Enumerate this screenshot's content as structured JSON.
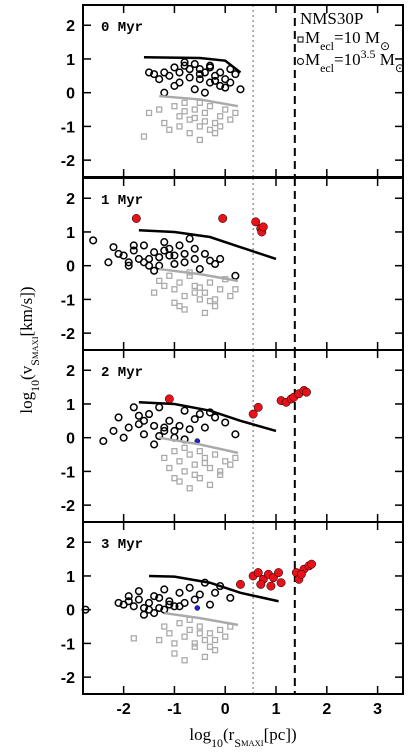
{
  "figure": {
    "xlabel": [
      {
        "text": "log"
      },
      {
        "text": "10",
        "shift": "sub"
      },
      {
        "text": "(r"
      },
      {
        "text": "S",
        "shift": "sub"
      },
      {
        "text": "MAXI",
        "shift": "subsub"
      },
      {
        "text": "[pc])"
      }
    ],
    "ylabel": [
      {
        "text": "log"
      },
      {
        "text": "10",
        "shift": "sub"
      },
      {
        "text": "(v"
      },
      {
        "text": "S",
        "shift": "sub"
      },
      {
        "text": "MAXI",
        "shift": "subsub"
      },
      {
        "text": "[km/s])"
      }
    ]
  },
  "chart_data": [
    {
      "type": "scatter",
      "label": "0 Myr",
      "xlim": [
        -2.8,
        3.5
      ],
      "ylim": [
        -2.5,
        2.6
      ],
      "xticks": [
        -2,
        -1,
        0,
        1,
        2,
        3
      ],
      "yticks": [
        -2,
        -1,
        0,
        1,
        2
      ],
      "show_xticklabels": false,
      "vlines": [
        {
          "x": 0.55,
          "style": "dotted",
          "color": "#999999"
        },
        {
          "x": 1.37,
          "style": "dashed",
          "color": "#000000"
        }
      ],
      "legend": {
        "title": "NMS30P",
        "entries": [
          {
            "marker": "square",
            "parts": [
              {
                "text": "M"
              },
              {
                "text": "ecl",
                "shift": "sub"
              },
              {
                "text": "=10 M"
              },
              {
                "text": "⊙",
                "shift": "sub"
              }
            ]
          },
          {
            "marker": "circle",
            "parts": [
              {
                "text": "M"
              },
              {
                "text": "ecl",
                "shift": "sub"
              },
              {
                "text": "=10"
              },
              {
                "text": "3.5",
                "shift": "sup"
              },
              {
                "text": " M"
              },
              {
                "text": "⊙",
                "shift": "sub"
              }
            ]
          }
        ]
      },
      "series": [
        {
          "marker": "square",
          "color": "#aaaaaa",
          "x": [
            -1.5,
            -1.3,
            -1.2,
            -1.0,
            -0.9,
            -0.8,
            -0.7,
            -0.6,
            -0.5,
            -0.4,
            -0.3,
            -0.2,
            -0.1,
            0.0,
            0.1,
            -1.1,
            -0.9,
            -0.7,
            -0.5,
            -0.3,
            -0.1,
            0.2,
            -0.8,
            -0.6,
            -0.4,
            -0.2,
            -1.6,
            -0.5
          ],
          "y": [
            -0.6,
            -0.5,
            -0.9,
            -0.4,
            -0.7,
            -0.3,
            -0.8,
            -0.5,
            -1.0,
            -0.6,
            -0.4,
            -0.9,
            -0.7,
            -0.5,
            -0.8,
            -1.1,
            -1.0,
            -1.2,
            -0.3,
            -1.1,
            -1.0,
            -0.6,
            -0.55,
            -0.75,
            -0.85,
            -1.2,
            -1.3,
            -1.4
          ]
        },
        {
          "marker": "circle",
          "color": "#000000",
          "x": [
            -1.5,
            -1.4,
            -1.3,
            -1.2,
            -1.1,
            -1.0,
            -0.9,
            -0.8,
            -0.7,
            -0.6,
            -0.5,
            -0.4,
            -0.3,
            -0.2,
            -0.1,
            0.0,
            0.1,
            0.2,
            -0.9,
            -0.7,
            -0.5,
            -0.3,
            -0.1,
            0.1,
            -0.6,
            -0.4,
            -0.2,
            0.0,
            -1.0,
            -0.8,
            -0.5,
            -0.3,
            0.3,
            -1.2
          ],
          "y": [
            0.6,
            0.55,
            0.4,
            0.6,
            0.5,
            0.75,
            0.6,
            0.8,
            0.7,
            0.85,
            0.7,
            0.6,
            0.75,
            0.5,
            0.6,
            0.4,
            0.3,
            0.55,
            0.3,
            0.45,
            0.4,
            0.3,
            0.2,
            0.7,
            0.1,
            0.0,
            0.35,
            0.15,
            0.2,
            0.9,
            0.55,
            0.8,
            0.1,
            0.0
          ]
        },
        {
          "marker": "line",
          "color": "#000000",
          "x": [
            -1.6,
            -0.5,
            0.0,
            0.3
          ],
          "y": [
            1.05,
            1.03,
            0.95,
            0.6
          ]
        },
        {
          "marker": "line",
          "color": "#aaaaaa",
          "x": [
            -1.3,
            -0.5,
            0.25
          ],
          "y": [
            -0.1,
            -0.2,
            -0.4
          ]
        }
      ]
    },
    {
      "type": "scatter",
      "label": "1 Myr",
      "xlim": [
        -2.8,
        3.5
      ],
      "ylim": [
        -2.5,
        2.6
      ],
      "xticks": [
        -2,
        -1,
        0,
        1,
        2,
        3
      ],
      "yticks": [
        -2,
        -1,
        0,
        1,
        2
      ],
      "show_xticklabels": false,
      "vlines": [
        {
          "x": 0.55,
          "style": "dotted",
          "color": "#999999"
        },
        {
          "x": 1.37,
          "style": "dashed",
          "color": "#000000"
        }
      ],
      "series": [
        {
          "marker": "square",
          "color": "#aaaaaa",
          "x": [
            -1.4,
            -1.2,
            -1.1,
            -1.0,
            -0.9,
            -0.8,
            -0.7,
            -0.6,
            -0.5,
            -0.4,
            -0.3,
            -0.2,
            -0.1,
            0.0,
            0.1,
            0.2,
            -1.0,
            -0.8,
            -0.6,
            -0.4,
            -0.2,
            -0.7,
            -0.5,
            -0.3,
            -1.3,
            -0.9
          ],
          "y": [
            -0.8,
            -0.6,
            -0.3,
            -0.7,
            -0.5,
            -0.9,
            -0.3,
            -0.6,
            -1.0,
            -0.8,
            -0.5,
            -1.2,
            -0.7,
            -0.4,
            -0.9,
            -0.7,
            -1.1,
            -1.3,
            -0.8,
            -1.4,
            -1.0,
            -0.2,
            -0.65,
            -1.05,
            -0.45,
            -1.2
          ]
        },
        {
          "marker": "circle",
          "color": "#000000",
          "x": [
            -2.6,
            -2.3,
            -2.2,
            -2.0,
            -1.9,
            -1.8,
            -1.7,
            -1.6,
            -1.5,
            -1.4,
            -1.3,
            -1.2,
            -1.1,
            -1.0,
            -0.9,
            -0.8,
            -0.7,
            -0.6,
            -0.5,
            -0.4,
            -0.3,
            -0.2,
            -2.1,
            -1.8,
            -1.6,
            -1.4,
            -1.2,
            -1.0,
            -0.8,
            -0.6,
            -1.5,
            -1.3,
            -1.1,
            0.2,
            -0.1,
            -1.9
          ],
          "y": [
            0.75,
            0.1,
            0.55,
            0.3,
            0.0,
            0.45,
            0.2,
            0.6,
            0.0,
            0.4,
            0.25,
            0.7,
            0.5,
            0.3,
            0.6,
            0.1,
            0.8,
            0.2,
            -0.1,
            0.35,
            0.15,
            0.05,
            0.35,
            0.6,
            0.1,
            -0.15,
            0.45,
            0.05,
            0.35,
            0.5,
            0.2,
            0.0,
            0.3,
            -0.3,
            0.2,
            0.1
          ]
        },
        {
          "marker": "filled",
          "color": "#e8111a",
          "x": [
            -1.75,
            -0.05,
            0.6,
            0.7,
            0.72,
            0.75
          ],
          "y": [
            1.4,
            1.4,
            1.3,
            1.1,
            1.0,
            1.15
          ]
        },
        {
          "marker": "line",
          "color": "#000000",
          "x": [
            -1.7,
            -1.0,
            -0.3,
            0.3,
            1.0
          ],
          "y": [
            1.05,
            1.0,
            0.85,
            0.55,
            0.2
          ]
        },
        {
          "marker": "line",
          "color": "#aaaaaa",
          "x": [
            -1.3,
            -0.5,
            0.25
          ],
          "y": [
            -0.1,
            -0.25,
            -0.45
          ]
        }
      ]
    },
    {
      "type": "scatter",
      "label": "2 Myr",
      "xlim": [
        -2.8,
        3.5
      ],
      "ylim": [
        -2.5,
        2.6
      ],
      "xticks": [
        -2,
        -1,
        0,
        1,
        2,
        3
      ],
      "yticks": [
        -2,
        -1,
        0,
        1,
        2
      ],
      "show_xticklabels": false,
      "vlines": [
        {
          "x": 0.55,
          "style": "dotted",
          "color": "#999999"
        },
        {
          "x": 1.37,
          "style": "dashed",
          "color": "#000000"
        }
      ],
      "series": [
        {
          "marker": "square",
          "color": "#aaaaaa",
          "x": [
            -1.2,
            -1.1,
            -1.0,
            -0.9,
            -0.8,
            -0.7,
            -0.6,
            -0.5,
            -0.4,
            -0.3,
            -0.2,
            -0.1,
            0.0,
            0.1,
            0.2,
            -0.9,
            -0.7,
            -0.5,
            -0.3,
            -0.1,
            -0.8,
            -0.6,
            -0.4,
            -1.0
          ],
          "y": [
            -0.6,
            -0.9,
            -0.4,
            -0.7,
            -1.0,
            -0.5,
            -0.8,
            -1.2,
            -0.6,
            -0.9,
            -0.5,
            -1.1,
            -0.7,
            -0.8,
            -0.6,
            -1.3,
            -1.5,
            -0.4,
            -1.4,
            -1.0,
            -0.3,
            -1.1,
            -0.75,
            -1.2
          ]
        },
        {
          "marker": "circle",
          "color": "#000000",
          "x": [
            -2.4,
            -2.2,
            -2.1,
            -1.9,
            -1.8,
            -1.7,
            -1.6,
            -1.5,
            -1.4,
            -1.3,
            -1.2,
            -1.1,
            -1.0,
            -0.9,
            -0.8,
            -0.7,
            -0.6,
            -0.5,
            -0.4,
            -0.3,
            -0.2,
            0.0,
            0.2,
            -2.0,
            -1.6,
            -1.4,
            -1.2,
            -1.0,
            -0.8,
            -1.7,
            -1.3
          ],
          "y": [
            -0.1,
            0.2,
            0.6,
            0.3,
            0.9,
            0.4,
            0.1,
            0.7,
            0.35,
            0.9,
            0.2,
            0.5,
            0.0,
            0.35,
            0.8,
            0.25,
            0.55,
            0.7,
            0.3,
            0.75,
            0.6,
            0.45,
            0.1,
            0.0,
            0.5,
            -0.2,
            0.3,
            0.2,
            -0.05,
            0.65,
            0.05
          ]
        },
        {
          "marker": "filled",
          "color": "#e8111a",
          "x": [
            -1.1,
            0.55,
            0.65,
            1.1,
            1.2,
            1.3,
            1.35,
            1.45,
            1.55,
            1.6
          ],
          "y": [
            1.15,
            0.7,
            0.9,
            1.1,
            1.05,
            1.15,
            1.2,
            1.3,
            1.4,
            1.35
          ]
        },
        {
          "marker": "filled",
          "color": "#2222cc",
          "x": [
            -0.55
          ],
          "y": [
            -0.1
          ]
        },
        {
          "marker": "line",
          "color": "#000000",
          "x": [
            -1.7,
            -1.0,
            -0.3,
            0.3,
            1.0
          ],
          "y": [
            1.05,
            1.0,
            0.8,
            0.5,
            0.2
          ]
        },
        {
          "marker": "line",
          "color": "#aaaaaa",
          "x": [
            -1.3,
            -0.5,
            0.25
          ],
          "y": [
            0.0,
            -0.2,
            -0.45
          ]
        }
      ]
    },
    {
      "type": "scatter",
      "label": "3 Myr",
      "xlim": [
        -2.8,
        3.5
      ],
      "ylim": [
        -2.5,
        2.6
      ],
      "xticks": [
        -2,
        -1,
        0,
        1,
        2,
        3
      ],
      "yticks": [
        -2,
        -1,
        0,
        1,
        2
      ],
      "show_xticklabels": true,
      "vlines": [
        {
          "x": 0.55,
          "style": "dotted",
          "color": "#999999"
        },
        {
          "x": 1.37,
          "style": "dashed",
          "color": "#000000"
        }
      ],
      "series": [
        {
          "marker": "square",
          "color": "#aaaaaa",
          "x": [
            -1.8,
            -1.3,
            -1.2,
            -1.1,
            -1.0,
            -0.9,
            -0.8,
            -0.7,
            -0.6,
            -0.5,
            -0.4,
            -0.3,
            -0.2,
            -0.1,
            0.0,
            0.1,
            -1.0,
            -0.8,
            -0.6,
            -0.4,
            -0.2,
            -0.7,
            -0.5,
            -0.3
          ],
          "y": [
            -0.85,
            -0.9,
            -0.5,
            -0.7,
            -1.0,
            -0.4,
            -0.8,
            -0.6,
            -1.1,
            -0.5,
            -0.9,
            -0.7,
            -1.2,
            -0.6,
            -0.8,
            -0.5,
            -1.3,
            -1.5,
            -1.0,
            -1.4,
            -0.9,
            -0.3,
            -0.7,
            -1.1
          ]
        },
        {
          "marker": "circle",
          "color": "#000000",
          "x": [
            -2.75,
            -2.1,
            -2.0,
            -1.9,
            -1.8,
            -1.7,
            -1.6,
            -1.5,
            -1.4,
            -1.3,
            -1.2,
            -1.1,
            -1.0,
            -0.9,
            -0.8,
            -0.7,
            -0.6,
            -0.5,
            -0.4,
            -0.3,
            -0.2,
            -0.1,
            0.1,
            -1.9,
            -1.7,
            -1.5,
            -1.3,
            -1.1,
            -0.9,
            -1.6,
            -1.4,
            -1.2
          ],
          "y": [
            0.0,
            0.2,
            0.15,
            0.4,
            0.1,
            0.3,
            0.05,
            0.2,
            -0.1,
            0.35,
            0.6,
            0.15,
            0.1,
            0.5,
            0.2,
            0.65,
            0.3,
            0.45,
            0.8,
            0.15,
            0.5,
            0.7,
            0.35,
            0.25,
            0.55,
            0.0,
            0.05,
            0.25,
            0.1,
            -0.15,
            0.4,
            0.0
          ]
        },
        {
          "marker": "filled",
          "color": "#e8111a",
          "x": [
            0.55,
            0.65,
            0.75,
            0.85,
            0.95,
            1.05,
            0.7,
            0.9,
            1.1,
            0.3,
            1.4,
            1.45,
            1.55,
            1.65,
            1.7,
            1.5
          ],
          "y": [
            1.0,
            1.1,
            0.9,
            1.05,
            0.95,
            1.1,
            0.75,
            0.7,
            0.8,
            0.75,
            1.1,
            0.9,
            1.2,
            1.3,
            1.35,
            1.05
          ]
        },
        {
          "marker": "filled",
          "color": "#2222cc",
          "x": [
            -0.55
          ],
          "y": [
            0.05
          ]
        },
        {
          "marker": "line",
          "color": "#000000",
          "x": [
            -1.5,
            -1.0,
            -0.3,
            0.3,
            1.05
          ],
          "y": [
            1.0,
            0.98,
            0.8,
            0.5,
            0.25
          ]
        },
        {
          "marker": "line",
          "color": "#aaaaaa",
          "x": [
            -1.2,
            -0.5,
            0.25
          ],
          "y": [
            -0.1,
            -0.25,
            -0.45
          ]
        }
      ]
    }
  ]
}
